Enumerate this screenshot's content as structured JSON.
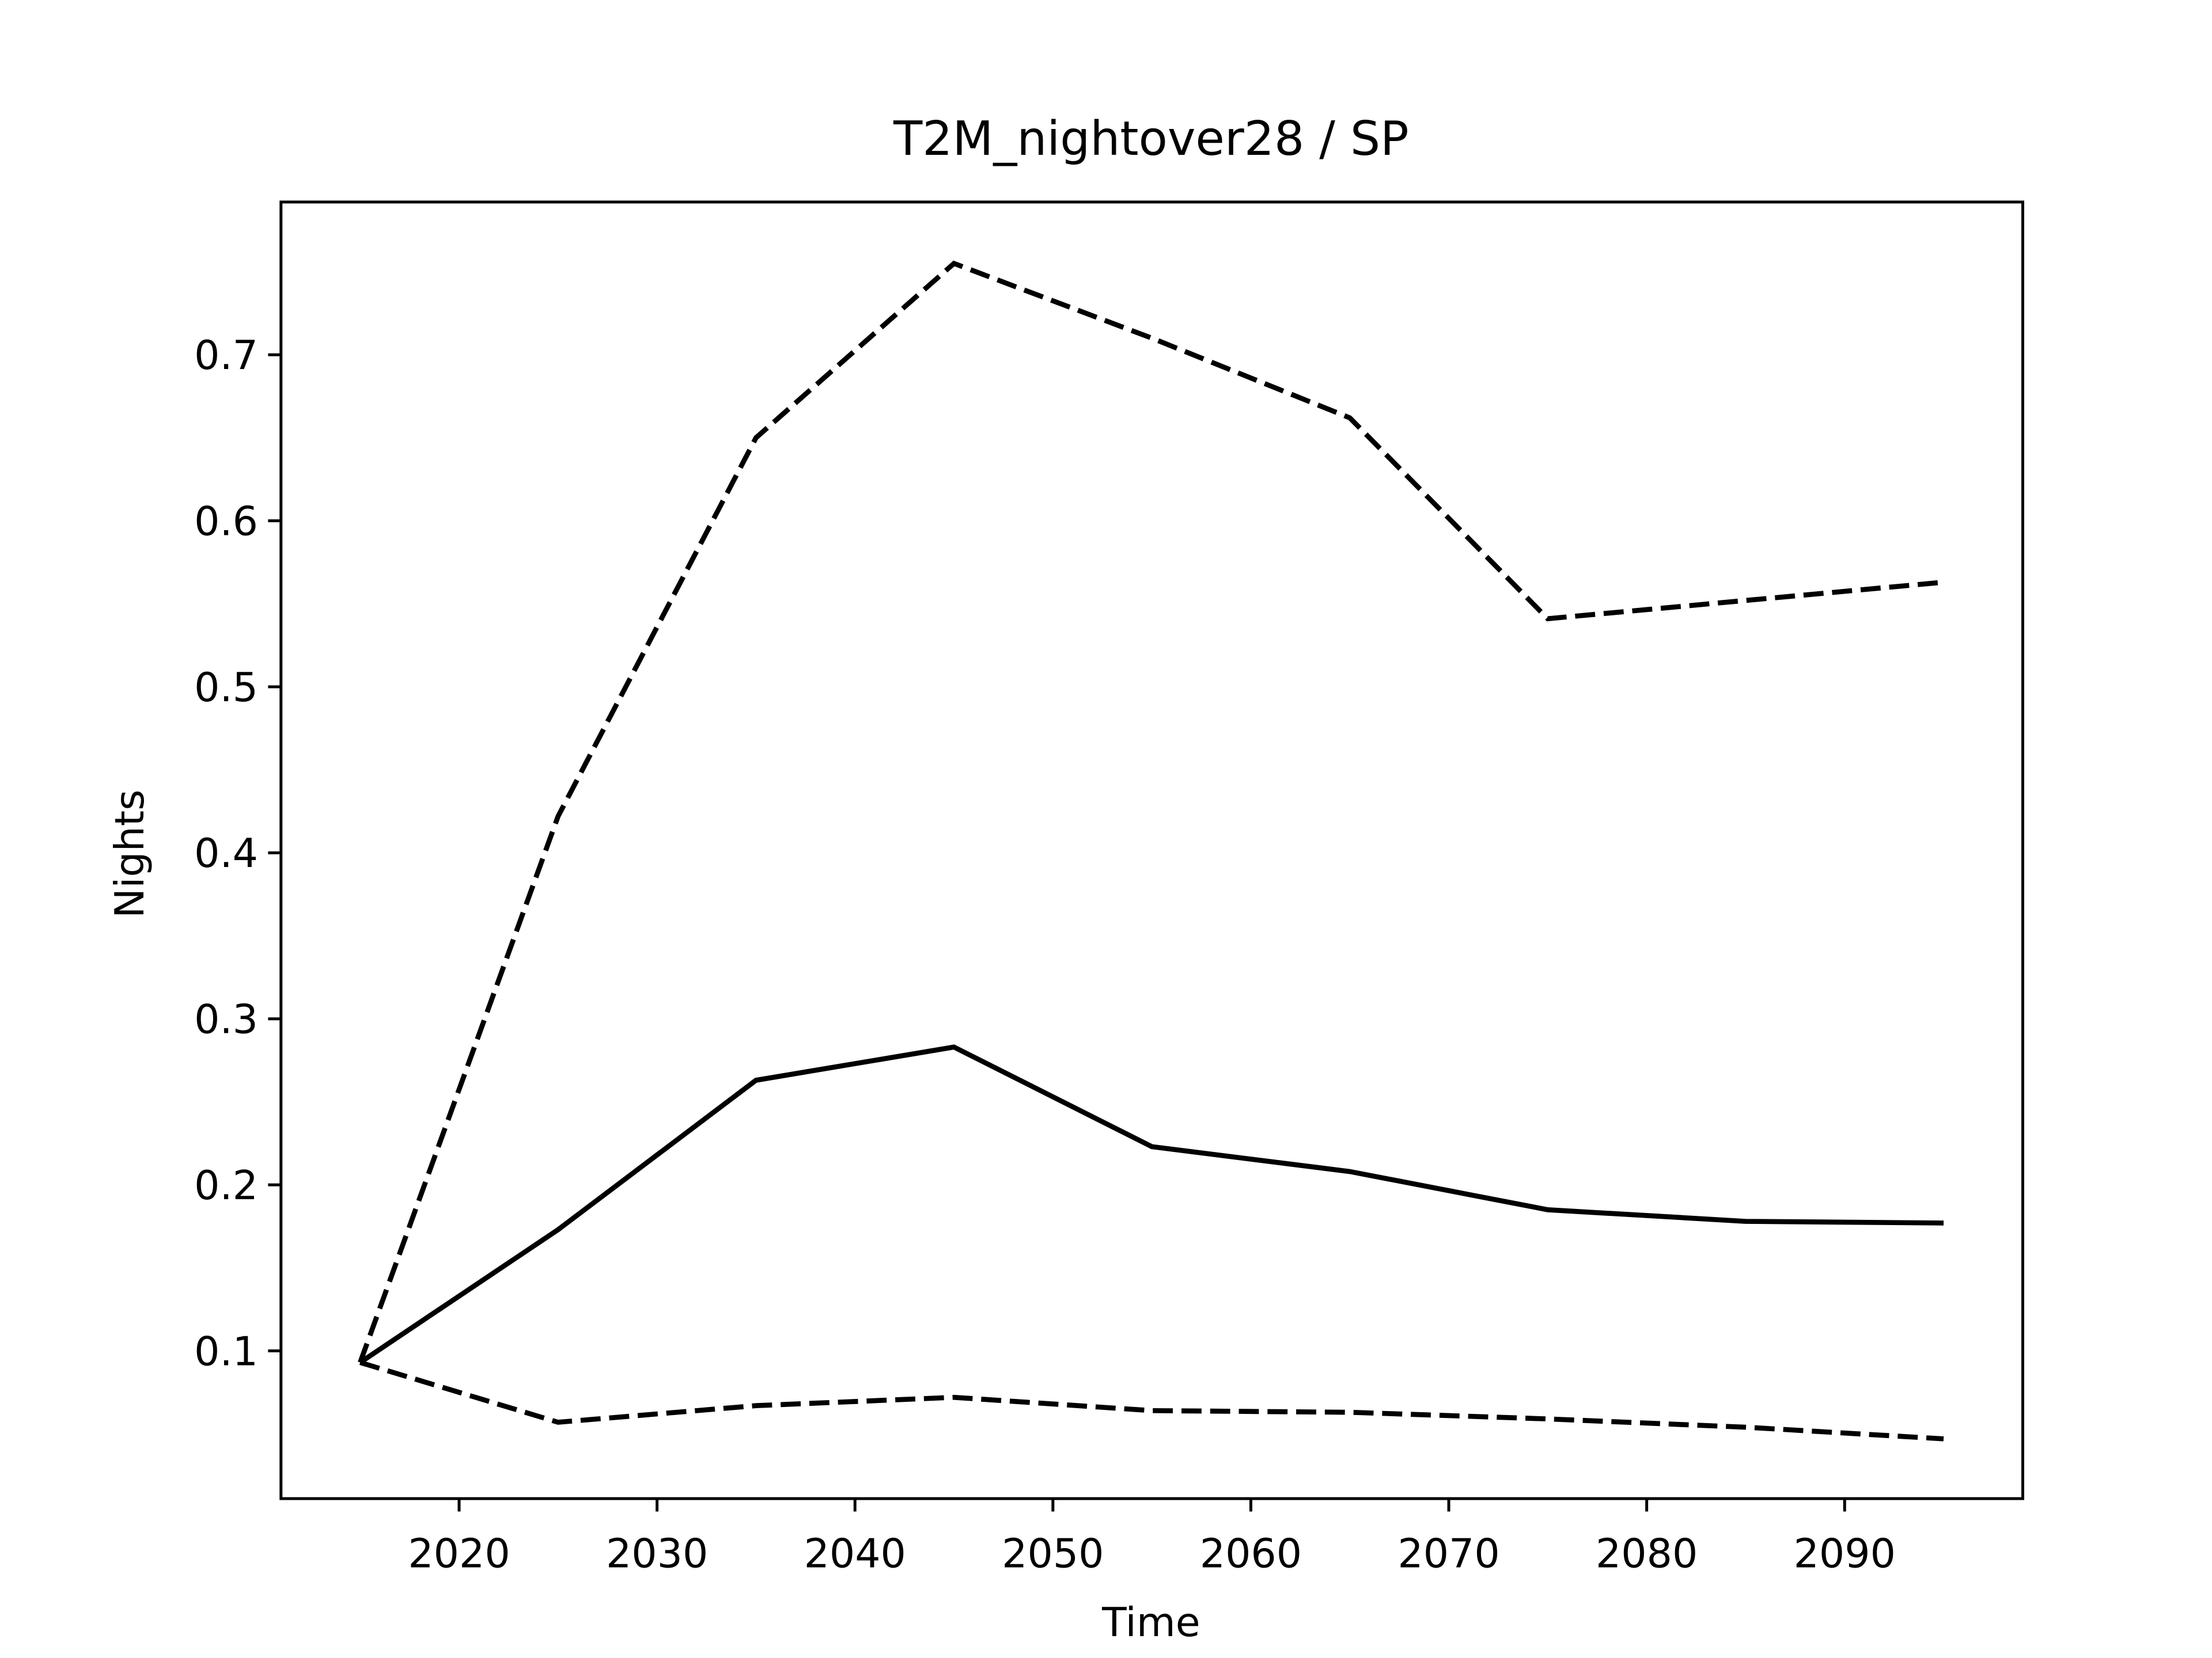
{
  "chart_data": {
    "type": "line",
    "title": "T2M_nightover28 / SP",
    "x_label": "Time",
    "y_label": "Nights",
    "x": [
      2015,
      2025,
      2035,
      2045,
      2055,
      2065,
      2075,
      2085,
      2095
    ],
    "series": [
      {
        "color": "#000000",
        "style": "solid",
        "values": [
          0.093,
          0.173,
          0.263,
          0.283,
          0.223,
          0.208,
          0.185,
          0.178,
          0.177
        ]
      },
      {
        "color": "#000000",
        "style": "dashed",
        "values": [
          0.093,
          0.422,
          0.65,
          0.755,
          0.71,
          0.662,
          0.541,
          0.552,
          0.563
        ]
      },
      {
        "color": "#000000",
        "style": "dashed",
        "values": [
          0.093,
          0.057,
          0.067,
          0.072,
          0.064,
          0.063,
          0.059,
          0.054,
          0.047
        ]
      }
    ],
    "xlim": [
      2011,
      2099
    ],
    "xticks": [
      2020,
      2030,
      2040,
      2050,
      2060,
      2070,
      2080,
      2090
    ],
    "ylim": [
      0.011,
      0.792
    ],
    "yticks": [
      0.1,
      0.2,
      0.3,
      0.4,
      0.5,
      0.6,
      0.7
    ],
    "grid": false
  }
}
